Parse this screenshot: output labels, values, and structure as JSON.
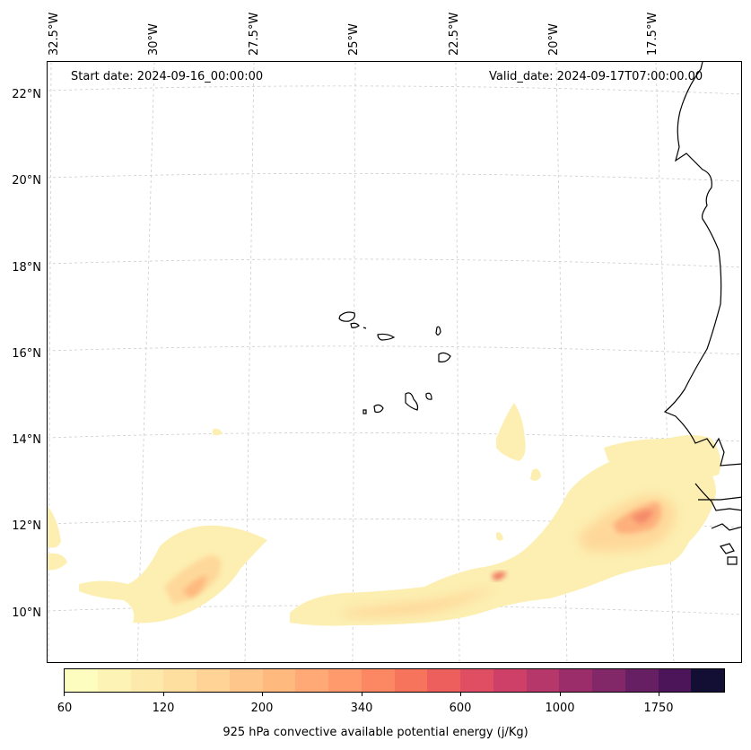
{
  "header": {
    "start_date": "Start date: 2024-09-16_00:00:00",
    "valid_date": "Valid_date: 2024-09-17T07:00:00.00"
  },
  "map": {
    "latitude_labels": [
      "22°N",
      "20°N",
      "18°N",
      "16°N",
      "14°N",
      "12°N",
      "10°N"
    ],
    "longitude_labels": [
      "32.5°W",
      "30°W",
      "27.5°W",
      "25°W",
      "22.5°W",
      "20°W",
      "17.5°W"
    ],
    "gridlines": true,
    "coastline_color": "#000000"
  },
  "colorbar": {
    "title": "925 hPa convective available potential energy (j/Kg)",
    "tick_labels": [
      "60",
      "120",
      "200",
      "340",
      "600",
      "1000",
      "1750"
    ],
    "colors": [
      "#fcfdbf",
      "#fcf3b4",
      "#fde9a9",
      "#fedf9f",
      "#fed395",
      "#fec68a",
      "#feb97f",
      "#fea976",
      "#fe9a6c",
      "#fb8862",
      "#f6745c",
      "#ed5f5d",
      "#e04e63",
      "#cf4068",
      "#b6376a",
      "#9b2e6a",
      "#822768",
      "#671f63",
      "#4c1459",
      "#130f34"
    ],
    "colormap": "magma_r"
  }
}
